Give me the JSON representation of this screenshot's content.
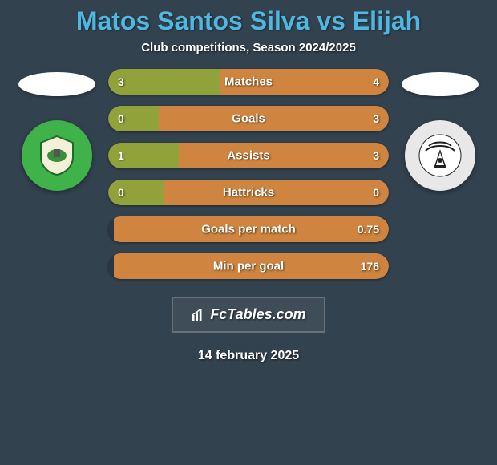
{
  "background_color": "#33424f",
  "title": {
    "text": "Matos Santos Silva vs Elijah",
    "color": "#4fb7e0",
    "fontsize": 32
  },
  "subtitle": "Club competitions, Season 2024/2025",
  "player_left": {
    "badge_bg": "#3fb24a",
    "badge_inner": "#f5f0d8"
  },
  "player_right": {
    "badge_bg": "#e8e8e8",
    "badge_inner": "#1f1f1f"
  },
  "bar_track_color": "#2a3642",
  "fill_left_color": "#92a23a",
  "fill_right_color": "#cf853f",
  "stats": [
    {
      "label": "Matches",
      "left_val": "3",
      "right_val": "4",
      "left_pct": 40,
      "right_pct": 60
    },
    {
      "label": "Goals",
      "left_val": "0",
      "right_val": "3",
      "left_pct": 18,
      "right_pct": 82
    },
    {
      "label": "Assists",
      "left_val": "1",
      "right_val": "3",
      "left_pct": 25,
      "right_pct": 75
    },
    {
      "label": "Hattricks",
      "left_val": "0",
      "right_val": "0",
      "left_pct": 20,
      "right_pct": 80
    },
    {
      "label": "Goals per match",
      "left_val": "",
      "right_val": "0.75",
      "left_pct": 0,
      "right_pct": 98
    },
    {
      "label": "Min per goal",
      "left_val": "",
      "right_val": "176",
      "left_pct": 0,
      "right_pct": 98
    }
  ],
  "brand": "FcTables.com",
  "date": "14 february 2025"
}
